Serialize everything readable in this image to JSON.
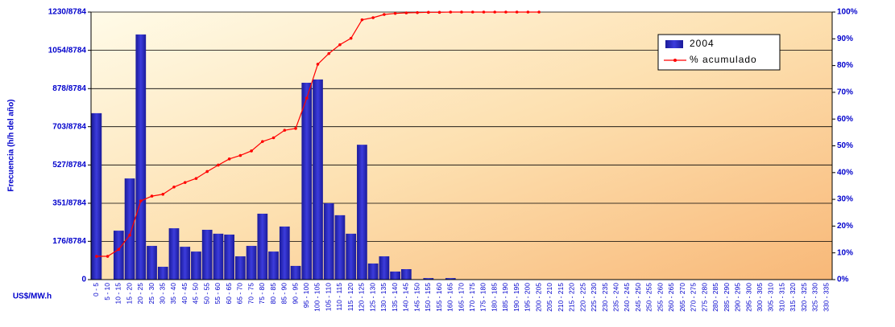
{
  "chart_data": {
    "type": "bar",
    "ylabel": "Frecuencia (h/h del año)",
    "xlabel": "US$/MW.h",
    "categories": [
      "0 - 5",
      "5 - 10",
      "10 - 15",
      "15 - 20",
      "20 - 25",
      "25 - 30",
      "30 - 35",
      "35 - 40",
      "40 - 45",
      "45 - 50",
      "50 - 55",
      "55 - 60",
      "60 - 65",
      "65 - 70",
      "70 - 75",
      "75 - 80",
      "80 - 85",
      "85 - 90",
      "90 - 95",
      "95 - 100",
      "100 - 105",
      "105 - 110",
      "110 - 115",
      "115 - 120",
      "120 - 125",
      "125 - 130",
      "130 - 135",
      "135 - 140",
      "140 - 145",
      "145 - 150",
      "150 - 155",
      "155 - 160",
      "160 - 165",
      "165 - 170",
      "170 - 175",
      "175 - 180",
      "180 - 185",
      "185 - 190",
      "190 - 195",
      "195 - 200",
      "200 - 205",
      "205 - 210",
      "210 - 215",
      "215 - 220",
      "220 - 225",
      "225 - 230",
      "230 - 235",
      "235 - 240",
      "240 - 245",
      "245 - 250",
      "250 - 255",
      "255 - 260",
      "260 - 265",
      "265 - 270",
      "270 - 275",
      "275 - 280",
      "280 - 285",
      "285 - 290",
      "290 - 295",
      "295 - 300",
      "300 - 305",
      "305 - 310",
      "310 - 315",
      "315 - 320",
      "320 - 325",
      "325 - 330",
      "330 - 335"
    ],
    "series": [
      {
        "name": "2004",
        "type": "bar",
        "color": "#3333cc",
        "values": [
          765,
          0,
          225,
          465,
          1127,
          155,
          59,
          236,
          151,
          129,
          229,
          211,
          207,
          107,
          155,
          303,
          129,
          244,
          63,
          905,
          920,
          351,
          296,
          211,
          620,
          74,
          107,
          37,
          48,
          0,
          7,
          0,
          7,
          0,
          0,
          0,
          0,
          0,
          0,
          0,
          0,
          0,
          0,
          0,
          0,
          0,
          0,
          0,
          0,
          0,
          0,
          0,
          0,
          0,
          0,
          0,
          0,
          0,
          0,
          0,
          0,
          0,
          0,
          0,
          0,
          0,
          0
        ]
      },
      {
        "name": "% acumulado",
        "type": "line",
        "axis": "y2",
        "color": "#ff0000",
        "values": [
          8.7,
          8.7,
          11.3,
          16.6,
          29.4,
          31.2,
          31.9,
          34.6,
          36.3,
          37.8,
          40.4,
          42.8,
          45.1,
          46.4,
          48.1,
          51.6,
          53.0,
          55.8,
          56.5,
          67.8,
          80.5,
          84.5,
          87.8,
          90.2,
          97.1,
          97.9,
          99.1,
          99.5,
          99.7,
          99.8,
          99.9,
          99.9,
          100,
          100,
          100,
          100,
          100,
          100,
          100,
          100,
          100,
          null,
          null,
          null,
          null,
          null,
          null,
          null,
          null,
          null,
          null,
          null,
          null,
          null,
          null,
          null,
          null,
          null,
          null,
          null,
          null,
          null,
          null,
          null,
          null,
          null,
          null
        ]
      }
    ],
    "ylim": [
      0,
      1230
    ],
    "yticks": [
      0,
      {
        "value": 176,
        "label": "176/8784"
      },
      {
        "value": 351,
        "label": "351/8784"
      },
      {
        "value": 527,
        "label": "527/8784"
      },
      {
        "value": 703,
        "label": "703/8784"
      },
      {
        "value": 878,
        "label": "878/8784"
      },
      {
        "value": 1054,
        "label": "1054/8784"
      },
      {
        "value": 1230,
        "label": "1230/8784"
      }
    ],
    "y2lim": [
      0,
      100
    ],
    "y2ticks": [
      {
        "value": 0,
        "label": "0%"
      },
      {
        "value": 10,
        "label": "10%"
      },
      {
        "value": 20,
        "label": "20%"
      },
      {
        "value": 30,
        "label": "30%"
      },
      {
        "value": 40,
        "label": "40%"
      },
      {
        "value": 50,
        "label": "50%"
      },
      {
        "value": 60,
        "label": "60%"
      },
      {
        "value": 70,
        "label": "70%"
      },
      {
        "value": 80,
        "label": "80%"
      },
      {
        "value": 90,
        "label": "90%"
      },
      {
        "value": 100,
        "label": "100%"
      }
    ],
    "grid": true,
    "legend": "top-right"
  }
}
